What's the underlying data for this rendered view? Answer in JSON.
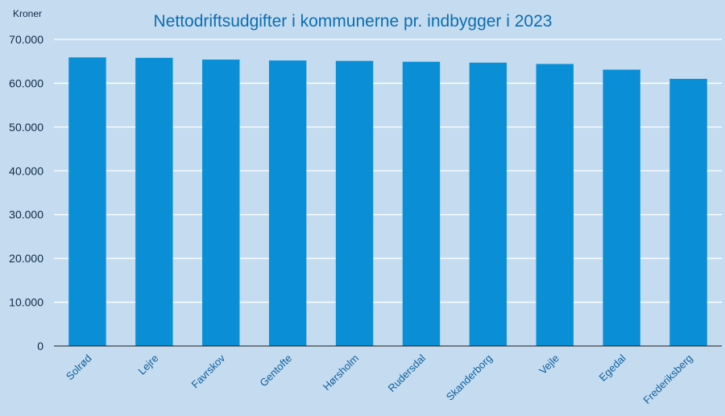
{
  "chart_data": {
    "type": "bar",
    "title": "Nettodriftsudgifter i kommunerne pr. indbygger i 2023",
    "ylabel": "Kroner",
    "xlabel": "",
    "categories": [
      "Solrød",
      "Lejre",
      "Favrskov",
      "Gentofte",
      "Hørsholm",
      "Rudersdal",
      "Skanderborg",
      "Vejle",
      "Egedal",
      "Frederiksberg"
    ],
    "values": [
      65900,
      65800,
      65400,
      65200,
      65100,
      64900,
      64700,
      64400,
      63100,
      61000
    ],
    "ylim": [
      0,
      70000
    ],
    "yticks": [
      "0",
      "10.000",
      "20.000",
      "30.000",
      "40.000",
      "50.000",
      "60.000",
      "70.000"
    ],
    "grid": true,
    "legend": "none",
    "colors": {
      "bar": "#0a8fd6",
      "background": "#c5dcf0",
      "grid": "#ffffff",
      "title": "#0b6db3"
    }
  }
}
